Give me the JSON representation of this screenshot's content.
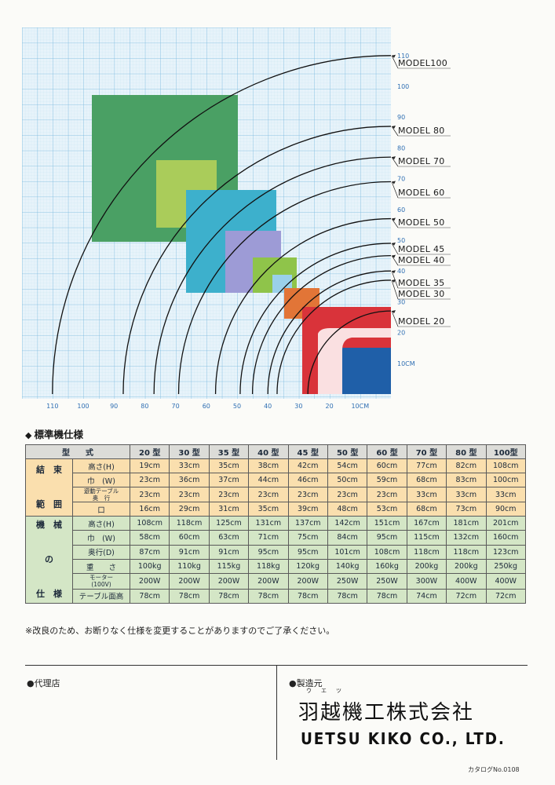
{
  "colors": {
    "grid_major": "#79b9de",
    "grid_minor": "#c4e1f0",
    "axis_text": "#2f6fb3",
    "model100": "#4aa064",
    "model80": "#aacc5a",
    "model60": "#3db0cc",
    "model50": "#9d9bd6",
    "model45": "#8fc44a",
    "model40": "#9ad0ea",
    "model35": "#e27537",
    "model30": "#d9333a",
    "model20": "#1f5fa8",
    "header_row": "#dcdcd8",
    "group1": "#fadfae",
    "group2": "#d4e6c6"
  },
  "chart": {
    "x_ticks": [
      "110",
      "100",
      "90",
      "80",
      "70",
      "60",
      "50",
      "40",
      "30",
      "20",
      "10CM"
    ],
    "y_ticks": [
      "110",
      "100",
      "90",
      "80",
      "70",
      "60",
      "50",
      "40",
      "30",
      "20",
      "10CM"
    ],
    "models": [
      {
        "name": "MODEL100",
        "value": 110
      },
      {
        "name": "MODEL 80",
        "value": 87
      },
      {
        "name": "MODEL 70",
        "value": 77
      },
      {
        "name": "MODEL 60",
        "value": 69
      },
      {
        "name": "MODEL 50",
        "value": 57
      },
      {
        "name": "MODEL 45",
        "value": 49
      },
      {
        "name": "MODEL 40",
        "value": 45
      },
      {
        "name": "MODEL 35",
        "value": 40
      },
      {
        "name": "MODEL 30",
        "value": 37
      },
      {
        "name": "MODEL 20",
        "value": 27
      }
    ]
  },
  "spec": {
    "title": "標準機仕様",
    "title_marker": "◆",
    "header": {
      "col0": "型　　式",
      "models": [
        "20 型",
        "30 型",
        "35 型",
        "40 型",
        "45 型",
        "50 型",
        "60 型",
        "70 型",
        "80 型",
        "100型"
      ]
    },
    "group1_label": "結　束\n\n範　囲",
    "group2_label": "機　械\n\nの\n\n仕　様",
    "rows1": [
      {
        "label": "高さ(H)",
        "values": [
          "19cm",
          "33cm",
          "35cm",
          "38cm",
          "42cm",
          "54cm",
          "60cm",
          "77cm",
          "82cm",
          "108cm"
        ]
      },
      {
        "label": "巾　(W)",
        "values": [
          "23cm",
          "36cm",
          "37cm",
          "44cm",
          "46cm",
          "50cm",
          "59cm",
          "68cm",
          "83cm",
          "100cm"
        ]
      },
      {
        "label": "遊動テーブル\n奥　行",
        "values": [
          "23cm",
          "23cm",
          "23cm",
          "23cm",
          "23cm",
          "23cm",
          "23cm",
          "33cm",
          "33cm",
          "33cm"
        ]
      },
      {
        "label": "口",
        "values": [
          "16cm",
          "29cm",
          "31cm",
          "35cm",
          "39cm",
          "48cm",
          "53cm",
          "68cm",
          "73cm",
          "90cm"
        ]
      }
    ],
    "rows2": [
      {
        "label": "高さ(H)",
        "values": [
          "108cm",
          "118cm",
          "125cm",
          "131cm",
          "137cm",
          "142cm",
          "151cm",
          "167cm",
          "181cm",
          "201cm"
        ]
      },
      {
        "label": "巾　(W)",
        "values": [
          "58cm",
          "60cm",
          "63cm",
          "71cm",
          "75cm",
          "84cm",
          "95cm",
          "115cm",
          "132cm",
          "160cm"
        ]
      },
      {
        "label": "奥行(D)",
        "values": [
          "87cm",
          "91cm",
          "91cm",
          "95cm",
          "95cm",
          "101cm",
          "108cm",
          "118cm",
          "118cm",
          "123cm"
        ]
      },
      {
        "label": "重　　さ",
        "values": [
          "100kg",
          "110kg",
          "115kg",
          "118kg",
          "120kg",
          "140kg",
          "160kg",
          "200kg",
          "200kg",
          "250kg"
        ]
      },
      {
        "label": "モーター\n(100V)",
        "values": [
          "200W",
          "200W",
          "200W",
          "200W",
          "200W",
          "250W",
          "250W",
          "300W",
          "400W",
          "400W"
        ]
      },
      {
        "label": "テーブル面高",
        "values": [
          "78cm",
          "78cm",
          "78cm",
          "78cm",
          "78cm",
          "78cm",
          "78cm",
          "74cm",
          "72cm",
          "72cm"
        ]
      }
    ],
    "note": "※改良のため、お断りなく仕様を変更することがありますのでご了承ください。"
  },
  "footer": {
    "agent": "●代理店",
    "maker": "●製造元",
    "ruby": "ウエツ",
    "company_jp": "羽越機工株式会社",
    "company_en": "UETSU KIKO CO., LTD.",
    "catalog": "カタログNo.0108"
  }
}
